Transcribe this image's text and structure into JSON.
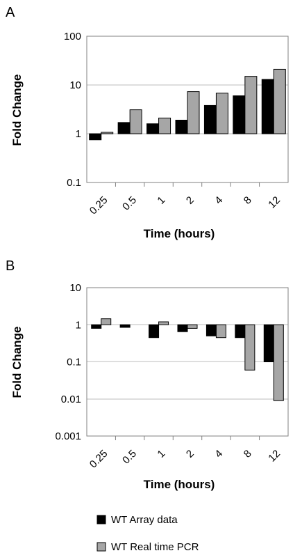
{
  "panels": {
    "a_label": "A",
    "b_label": "B"
  },
  "legend": {
    "array_label": "WT Array data",
    "pcr_label": "WT Real time PCR"
  },
  "colors": {
    "array": "#000000",
    "pcr": "#a6a6a6",
    "grid": "#bdbdbd",
    "axis": "#808080"
  },
  "chart_data": [
    {
      "type": "bar",
      "panel": "A",
      "xlabel": "Time (hours)",
      "ylabel": "Fold Change",
      "yscale": "log",
      "ylim": [
        0.1,
        100
      ],
      "yticks": [
        "100",
        "10",
        "1",
        "0.1"
      ],
      "categories": [
        "0.25",
        "0.5",
        "1",
        "2",
        "4",
        "8",
        "12"
      ],
      "baseline": 1,
      "grid": true,
      "series": [
        {
          "name": "WT Array data",
          "values": [
            0.75,
            1.7,
            1.6,
            1.9,
            3.8,
            6,
            13
          ]
        },
        {
          "name": "WT Real time PCR",
          "values": [
            1.07,
            3.1,
            2.1,
            7.3,
            6.8,
            15,
            21
          ]
        }
      ]
    },
    {
      "type": "bar",
      "panel": "B",
      "xlabel": "Time (hours)",
      "ylabel": "Fold Change",
      "yscale": "log",
      "ylim": [
        0.001,
        10
      ],
      "yticks": [
        "10",
        "1",
        "0.1",
        "0.01",
        "0.001"
      ],
      "categories": [
        "0.25",
        "0.5",
        "1",
        "2",
        "4",
        "8",
        "12"
      ],
      "baseline": 1,
      "grid": true,
      "legend_position": "bottom",
      "series": [
        {
          "name": "WT Array data",
          "values": [
            0.8,
            0.85,
            0.45,
            0.65,
            0.5,
            0.45,
            0.1
          ]
        },
        {
          "name": "WT Real time PCR",
          "values": [
            1.45,
            null,
            1.2,
            0.8,
            0.45,
            0.06,
            0.009
          ]
        }
      ]
    }
  ]
}
